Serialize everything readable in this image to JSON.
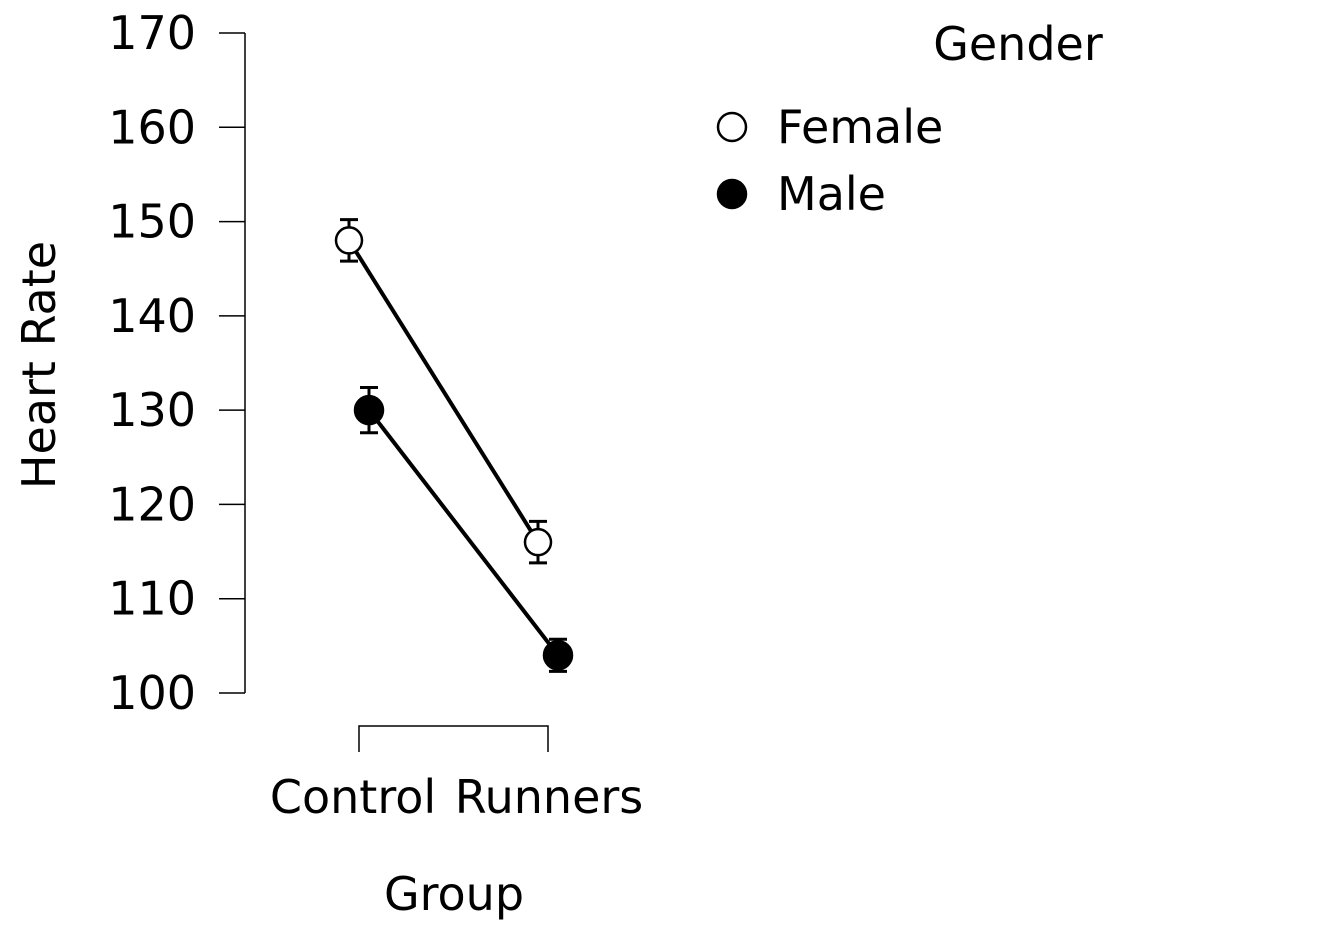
{
  "chart_data": {
    "type": "line",
    "xlabel": "Group",
    "ylabel": "Heart Rate",
    "categories": [
      "Control",
      "Runners"
    ],
    "ylim": [
      100,
      170
    ],
    "yticks": [
      100,
      110,
      120,
      130,
      140,
      150,
      160,
      170
    ],
    "legend": {
      "title": "Gender",
      "placement": "top-right"
    },
    "series": [
      {
        "name": "Female",
        "marker": "open-circle",
        "values": [
          148,
          116
        ],
        "error": [
          2.2,
          2.2
        ]
      },
      {
        "name": "Male",
        "marker": "filled-circle",
        "values": [
          130,
          104
        ],
        "error": [
          2.4,
          1.7
        ]
      }
    ],
    "colors": {
      "line": "#000000",
      "open_fill": "#ffffff",
      "filled_fill": "#000000"
    }
  }
}
